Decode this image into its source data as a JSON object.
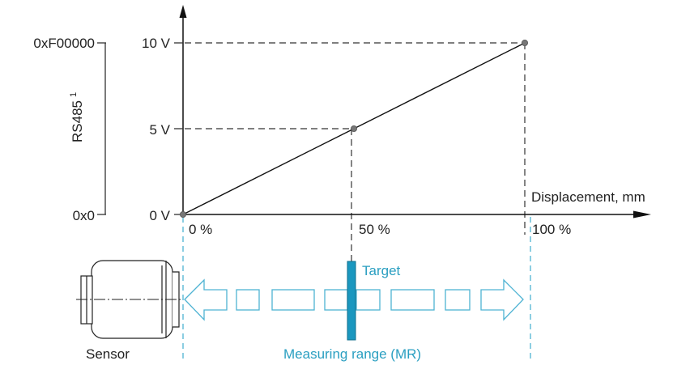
{
  "colors": {
    "axis": "#111111",
    "dash": "#333333",
    "accent": "#2a9fc1",
    "target_fill": "#1a97bf",
    "sensor_stroke": "#222222",
    "point": "#777777"
  },
  "axes": {
    "x_label": "Displacement, mm",
    "y_ticks": [
      "0 V",
      "5 V",
      "10 V"
    ],
    "x_ticks": [
      "0 %",
      "50 %",
      "100 %"
    ]
  },
  "rs485": {
    "label": "RS485",
    "superscript": "1",
    "top_value": "0xF00000",
    "bottom_value": "0x0"
  },
  "chart_data": {
    "type": "line",
    "xlabel": "Displacement, mm",
    "ylabel": "",
    "x": [
      0,
      50,
      100
    ],
    "values": [
      0,
      5,
      10
    ],
    "x_unit": "%",
    "y_unit": "V",
    "xlim": [
      0,
      100
    ],
    "ylim": [
      0,
      10
    ],
    "secondary_y_ticks": [
      "0x0",
      "0xF00000"
    ],
    "secondary_y_label": "RS485 1"
  },
  "labels": {
    "target": "Target",
    "sensor": "Sensor",
    "measuring_range": "Measuring range (MR)"
  },
  "icons": {
    "sensor": "sensor-body-icon",
    "range_arrow": "double-arrow-icon"
  }
}
